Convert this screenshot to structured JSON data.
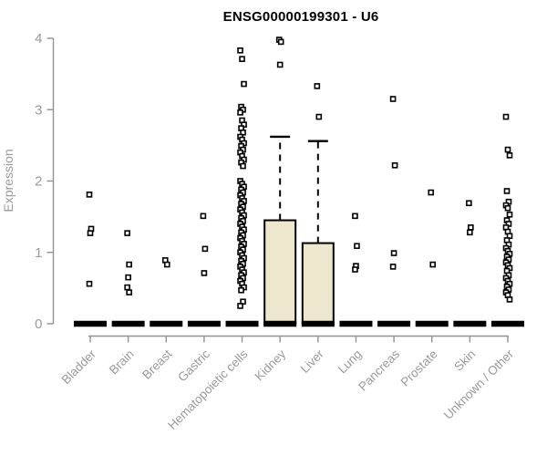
{
  "chart_data": {
    "type": "boxplot",
    "title": "ENSG00000199301 - U6",
    "ylabel": "Expression",
    "xlabel": "",
    "ylim": [
      0,
      4
    ],
    "yticks": [
      "0",
      "1",
      "2",
      "3",
      "4"
    ],
    "grid": false,
    "legend": false,
    "categories": [
      "Bladder",
      "Brain",
      "Breast",
      "Gastric",
      "Hematopoietic cells",
      "Kidney",
      "Liver",
      "Lung",
      "Pancreas",
      "Prostate",
      "Skin",
      "Unknown / Other"
    ],
    "series": [
      {
        "category": "Bladder",
        "q1": 0,
        "median": 0,
        "q3": 0,
        "whisker_low": 0,
        "whisker_high": 0,
        "outliers": [
          1.81,
          1.33,
          1.27,
          0.56
        ]
      },
      {
        "category": "Brain",
        "q1": 0,
        "median": 0,
        "q3": 0,
        "whisker_low": 0,
        "whisker_high": 0,
        "outliers": [
          1.27,
          0.83,
          0.65,
          0.51,
          0.44
        ]
      },
      {
        "category": "Breast",
        "q1": 0,
        "median": 0,
        "q3": 0,
        "whisker_low": 0,
        "whisker_high": 0,
        "outliers": [
          0.89,
          0.83
        ]
      },
      {
        "category": "Gastric",
        "q1": 0,
        "median": 0,
        "q3": 0,
        "whisker_low": 0,
        "whisker_high": 0,
        "outliers": [
          1.51,
          1.05,
          0.71
        ]
      },
      {
        "category": "Hematopoietic cells",
        "q1": 0,
        "median": 0,
        "q3": 0,
        "whisker_low": 0,
        "whisker_high": 0,
        "outliers": [
          3.83,
          3.71,
          3.36,
          3.04,
          3.0,
          2.96,
          2.85,
          2.79,
          2.74,
          2.68,
          2.62,
          2.58,
          2.53,
          2.49,
          2.44,
          2.4,
          2.35,
          2.3,
          2.26,
          2.21,
          2.0,
          1.96,
          1.92,
          1.88,
          1.84,
          1.8,
          1.76,
          1.72,
          1.68,
          1.64,
          1.6,
          1.56,
          1.52,
          1.48,
          1.44,
          1.4,
          1.36,
          1.32,
          1.28,
          1.24,
          1.2,
          1.16,
          1.12,
          1.08,
          1.04,
          1.0,
          0.96,
          0.92,
          0.88,
          0.84,
          0.8,
          0.76,
          0.72,
          0.68,
          0.64,
          0.6,
          0.56,
          0.51,
          0.47,
          0.31,
          0.25
        ]
      },
      {
        "category": "Kidney",
        "q1": 0,
        "median": 0,
        "q3": 1.45,
        "whisker_low": 0,
        "whisker_high": 2.62,
        "outliers": [
          3.98,
          3.95,
          3.63
        ]
      },
      {
        "category": "Liver",
        "q1": 0,
        "median": 0,
        "q3": 1.13,
        "whisker_low": 0,
        "whisker_high": 2.56,
        "outliers": [
          3.33,
          2.9
        ]
      },
      {
        "category": "Lung",
        "q1": 0,
        "median": 0,
        "q3": 0,
        "whisker_low": 0,
        "whisker_high": 0,
        "outliers": [
          1.51,
          1.09,
          0.81,
          0.76
        ]
      },
      {
        "category": "Pancreas",
        "q1": 0,
        "median": 0,
        "q3": 0,
        "whisker_low": 0,
        "whisker_high": 0,
        "outliers": [
          3.15,
          2.22,
          0.99,
          0.8
        ]
      },
      {
        "category": "Prostate",
        "q1": 0,
        "median": 0,
        "q3": 0,
        "whisker_low": 0,
        "whisker_high": 0,
        "outliers": [
          1.84,
          0.83
        ]
      },
      {
        "category": "Skin",
        "q1": 0,
        "median": 0,
        "q3": 0,
        "whisker_low": 0,
        "whisker_high": 0,
        "outliers": [
          1.69,
          1.35,
          1.28
        ]
      },
      {
        "category": "Unknown / Other",
        "q1": 0,
        "median": 0,
        "q3": 0,
        "whisker_low": 0,
        "whisker_high": 0,
        "outliers": [
          2.9,
          2.44,
          2.36,
          1.86,
          1.71,
          1.66,
          1.62,
          1.53,
          1.45,
          1.4,
          1.35,
          1.29,
          1.23,
          1.17,
          1.11,
          1.06,
          1.02,
          0.98,
          0.94,
          0.9,
          0.86,
          0.82,
          0.78,
          0.74,
          0.68,
          0.64,
          0.6,
          0.56,
          0.52,
          0.48,
          0.44,
          0.4,
          0.34
        ]
      }
    ],
    "colors": {
      "box_fill": "#EDE8CD",
      "box_stroke": "#000000",
      "median": "#000000",
      "point_stroke": "#000000",
      "point_fill": "#FFFFFF",
      "axis": "#929292",
      "tick_text": "#9A9A9A",
      "title_text": "#000000"
    }
  }
}
